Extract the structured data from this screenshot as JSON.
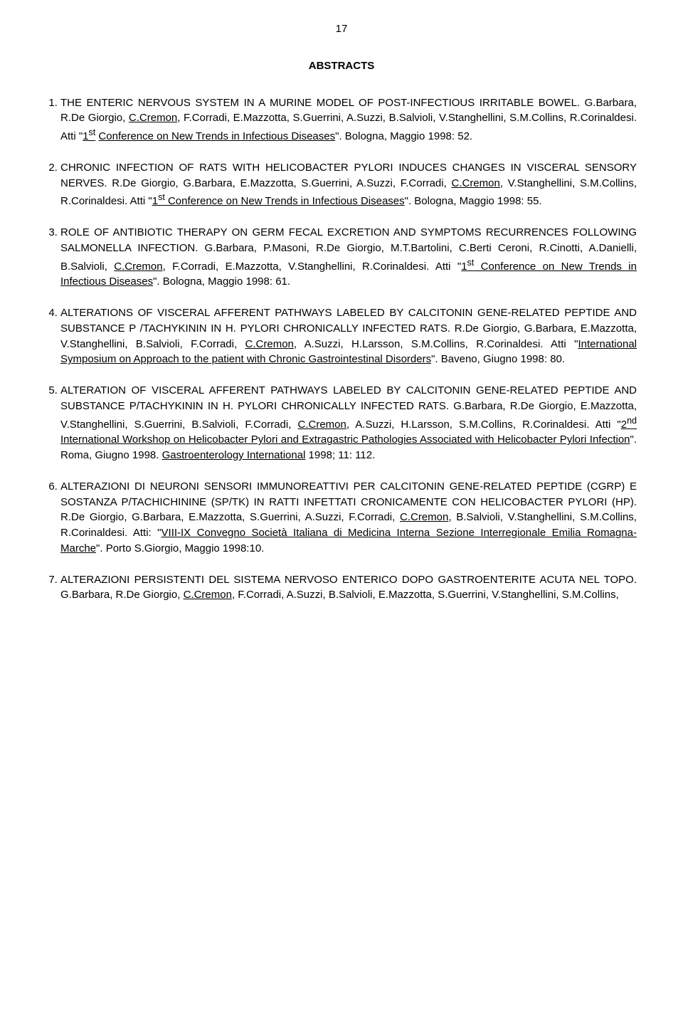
{
  "page": {
    "number": "17"
  },
  "heading": "ABSTRACTS",
  "items": [
    {
      "html": "THE ENTERIC NERVOUS SYSTEM IN A MURINE MODEL OF POST-INFECTIOUS IRRITABLE BOWEL. G.Barbara, R.De Giorgio, <span class='u'>C.Cremon</span>, F.Corradi, E.Mazzotta, S.Guerrini, A.Suzzi, B.Salvioli, V.Stanghellini, S.M.Collins, R.Corinaldesi. Atti \"<span class='u'>1<sup>st</sup></span> <span class='u'>Conference on New Trends in Infectious Diseases</span>\". Bologna, Maggio 1998: 52."
    },
    {
      "html": "CHRONIC INFECTION OF RATS WITH HELICOBACTER PYLORI INDUCES CHANGES IN VISCERAL SENSORY NERVES. R.De Giorgio, G.Barbara, E.Mazzotta, S.Guerrini, A.Suzzi, F.Corradi, <span class='u'>C.Cremon</span>, V.Stanghellini, S.M.Collins, R.Corinaldesi. Atti \"<span class='u'>1<sup>st</sup> Conference on New Trends in Infectious Diseases</span>\". Bologna, Maggio 1998: 55."
    },
    {
      "html": "ROLE OF ANTIBIOTIC THERAPY ON GERM FECAL EXCRETION AND SYMPTOMS RECURRENCES FOLLOWING SALMONELLA INFECTION. G.Barbara, P.Masoni, R.De Giorgio, M.T.Bartolini, C.Berti Ceroni, R.Cinotti, A.Danielli, B.Salvioli, <span class='u'>C.Cremon</span>, F.Corradi, E.Mazzotta, V.Stanghellini, R.Corinaldesi. Atti \"<span class='u'>1<sup>st</sup> Conference on New Trends in Infectious Diseases</span>\". Bologna, Maggio 1998: 61."
    },
    {
      "html": "ALTERATIONS OF VISCERAL AFFERENT PATHWAYS LABELED BY CALCITONIN GENE-RELATED PEPTIDE AND SUBSTANCE P /TACHYKININ IN H. PYLORI CHRONICALLY INFECTED RATS. R.De Giorgio, G.Barbara, E.Mazzotta, V.Stanghellini, B.Salvioli, F.Corradi, <span class='u'>C.Cremon</span>, A.Suzzi, H.Larsson, S.M.Collins, R.Corinaldesi. Atti \"<span class='u'>International Symposium on Approach to the patient with Chronic Gastrointestinal Disorders</span>\". Baveno, Giugno 1998: 80."
    },
    {
      "html": "ALTERATION OF VISCERAL AFFERENT PATHWAYS LABELED BY CALCITONIN GENE-RELATED PEPTIDE AND SUBSTANCE P/TACHYKININ IN H. PYLORI CHRONICALLY INFECTED RATS. G.Barbara, R.De Giorgio, E.Mazzotta, V.Stanghellini, S.Guerrini, B.Salvioli, F.Corradi, <span class='u'>C.Cremon</span>, A.Suzzi, H.Larsson, S.M.Collins, R.Corinaldesi. Atti \"<span class='u'>2<sup>nd</sup> International Workshop on Helicobacter Pylori and Extragastric Pathologies Associated with Helicobacter Pylori Infection</span>\". Roma, Giugno 1998. <span class='u'>Gastroenterology International</span> 1998; 11: 112."
    },
    {
      "html": "ALTERAZIONI DI NEURONI SENSORI IMMUNOREATTIVI PER CALCITONIN GENE-RELATED PEPTIDE (CGRP) E SOSTANZA P/TACHICHININE (SP/TK) IN RATTI INFETTATI CRONICAMENTE CON HELICOBACTER PYLORI (HP). R.De Giorgio, G.Barbara, E.Mazzotta, S.Guerrini, A.Suzzi, F.Corradi, <span class='u'>C.Cremon</span>, B.Salvioli, V.Stanghellini, S.M.Collins, R.Corinaldesi. Atti: \"<span class='u'>VIII-IX Convegno Società Italiana di Medicina Interna Sezione Interregionale Emilia Romagna-Marche</span>\". Porto S.Giorgio, Maggio 1998:10."
    },
    {
      "html": "ALTERAZIONI PERSISTENTI DEL SISTEMA NERVOSO ENTERICO DOPO GASTROENTERITE ACUTA NEL TOPO. G.Barbara, R.De Giorgio, <span class='u'>C.Cremon</span>, F.Corradi, A.Suzzi, B.Salvioli, E.Mazzotta, S.Guerrini, V.Stanghellini, S.M.Collins,"
    }
  ]
}
